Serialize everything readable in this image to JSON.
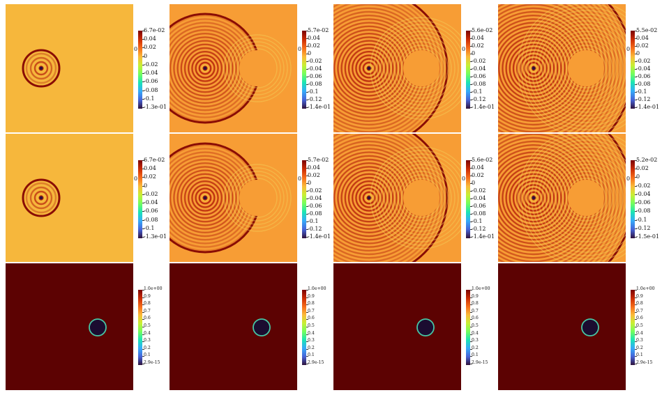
{
  "colors": {
    "turbo_stops": [
      "#30123b",
      "#4662d7",
      "#36aaf9",
      "#1ae4b6",
      "#72fe5e",
      "#c8ef34",
      "#faba39",
      "#f66b19",
      "#ca2a04",
      "#7a0403"
    ],
    "bg_wave": "#f6b73c",
    "bg_dark": "#5c0202",
    "circle_fill": "#1b0c30",
    "circle_edge": "#47c6a4"
  },
  "rows": [
    {
      "kind": "wave",
      "panels": [
        {
          "label_max": "6.7e-02",
          "label_min": "-1.3e-01",
          "ticks": [
            "0.04",
            "0.02",
            "0",
            "-0.02",
            "-0.04",
            "-0.06",
            "-0.08",
            "-0.1"
          ],
          "axis_zero": "0"
        },
        {
          "label_max": "5.7e-02",
          "label_min": "-1.4e-01",
          "ticks": [
            "0.04",
            "0.02",
            "0",
            "-0.02",
            "-0.04",
            "-0.06",
            "-0.08",
            "-0.1",
            "-0.12"
          ],
          "axis_zero": "0"
        },
        {
          "label_max": "5.6e-02",
          "label_min": "-1.4e-01",
          "ticks": [
            "0.04",
            "0.02",
            "0",
            "-0.02",
            "-0.04",
            "-0.06",
            "-0.08",
            "-0.1",
            "-0.12"
          ],
          "axis_zero": "0"
        },
        {
          "label_max": "5.5e-02",
          "label_min": "-1.4e-01",
          "ticks": [
            "0.04",
            "0.02",
            "0",
            "-0.02",
            "-0.04",
            "-0.06",
            "-0.08",
            "-0.1",
            "-0.12"
          ],
          "axis_zero": "0"
        }
      ]
    },
    {
      "kind": "wave",
      "panels": [
        {
          "label_max": "6.7e-02",
          "label_min": "-1.3e-01",
          "ticks": [
            "0.04",
            "0.02",
            "0",
            "-0.02",
            "-0.04",
            "-0.06",
            "-0.08",
            "-0.1"
          ],
          "axis_zero": "0"
        },
        {
          "label_max": "5.7e-02",
          "label_min": "-1.4e-01",
          "ticks": [
            "0.04",
            "0.02",
            "0",
            "-0.02",
            "-0.04",
            "-0.06",
            "-0.08",
            "-0.1",
            "-0.12"
          ],
          "axis_zero": "0"
        },
        {
          "label_max": "5.6e-02",
          "label_min": "-1.4e-01",
          "ticks": [
            "0.04",
            "0.02",
            "0",
            "-0.02",
            "-0.04",
            "-0.06",
            "-0.08",
            "-0.1",
            "-0.12"
          ],
          "axis_zero": "0"
        },
        {
          "label_max": "5.2e-02",
          "label_min": "-1.5e-01",
          "ticks": [
            "0.02",
            "0",
            "-0.02",
            "-0.04",
            "-0.06",
            "-0.08",
            "-0.1",
            "-0.12"
          ],
          "axis_zero": "0"
        }
      ]
    },
    {
      "kind": "mask",
      "panels": [
        {
          "label_max": "1.0e+00",
          "label_min": "2.9e-15",
          "ticks": [
            "0.9",
            "0.8",
            "0.7",
            "0.6",
            "0.5",
            "0.4",
            "0.3",
            "0.2",
            "0.1"
          ]
        },
        {
          "label_max": "1.0e+00",
          "label_min": "2.9e-15",
          "ticks": [
            "0.9",
            "0.8",
            "0.7",
            "0.6",
            "0.5",
            "0.4",
            "0.3",
            "0.2",
            "0.1"
          ]
        },
        {
          "label_max": "1.0e+00",
          "label_min": "2.9e-15",
          "ticks": [
            "0.9",
            "0.8",
            "0.7",
            "0.6",
            "0.5",
            "0.4",
            "0.3",
            "0.2",
            "0.1"
          ]
        },
        {
          "label_max": "1.0e+00",
          "label_min": "2.9e-15",
          "ticks": [
            "0.9",
            "0.8",
            "0.7",
            "0.6",
            "0.5",
            "0.4",
            "0.3",
            "0.2",
            "0.1"
          ]
        }
      ]
    }
  ]
}
